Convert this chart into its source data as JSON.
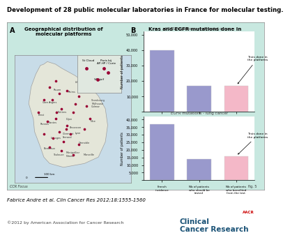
{
  "title": "Development of 28 public molecular laboratories in France for molecular testing.",
  "panel_b_title": "Kras and EGFR mutations done in\nmolecular platforms",
  "kras_subtitle": "KRAS mutations - colorectal cancer",
  "egfr_subtitle": "EGFR mutations - lung cancer",
  "kras_values": [
    40000,
    17000,
    17000
  ],
  "egfr_values": [
    37000,
    14000,
    16000
  ],
  "bar_labels": [
    "French\nincidence",
    "Nb of patients\nwho should be\ntested",
    "Nb of patients\nwho benefited\nfrom the test"
  ],
  "kras_colors": [
    "#9999cc",
    "#9999cc",
    "#f4b8c8"
  ],
  "egfr_colors": [
    "#9999cc",
    "#9999cc",
    "#f4b8c8"
  ],
  "kras_ylim": [
    0,
    52000
  ],
  "egfr_ylim": [
    0,
    42000
  ],
  "kras_yticks": [
    0,
    10000,
    20000,
    30000,
    40000,
    50000
  ],
  "egfr_yticks": [
    0,
    5000,
    10000,
    15000,
    20000,
    25000,
    30000,
    35000,
    40000
  ],
  "annotation_text": "Tests done in\nthe platforms",
  "panel_a_label": "A",
  "panel_b_label": "B",
  "panel_a_title": "Geographical distribution of\nmolecular platforms",
  "footer_text": "Fabrice Andre et al. Clin Cancer Res 2012;18:1555-1560",
  "copyright_text": "©2012 by American Association for Cancer Research",
  "journal_title": "Clinical\nCancer Research",
  "ylabel": "Number of patients",
  "outer_bg": "#c8e8e0",
  "plot_bg": "#ffffff",
  "map_bg": "#c8dce8",
  "france_fill": "#e8e8d8",
  "teal_line_color": "#2a8a7a",
  "dot_color": "#990033",
  "ccr_bar_color": "#c8e8e0"
}
